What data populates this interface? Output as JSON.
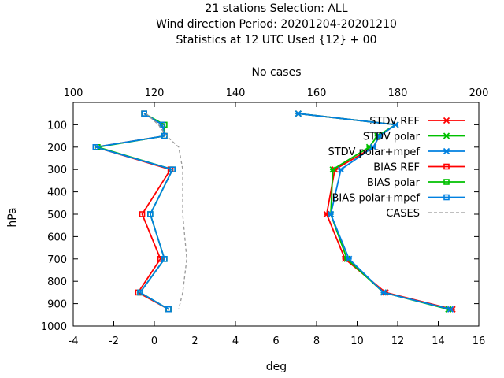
{
  "chart_data": {
    "type": "line",
    "title": [
      "21 stations Selection: ALL",
      "Wind direction  Period: 20201204-20201210",
      "Statistics at 12 UTC  Used {12} + 00"
    ],
    "xlabel": "deg",
    "x2label": "No cases",
    "ylabel": "hPa",
    "xlim": [
      -4,
      16
    ],
    "x2lim": [
      100,
      200
    ],
    "ylim": [
      1000,
      0
    ],
    "xticks": [
      "-4",
      "-2",
      "0",
      "2",
      "4",
      "6",
      "8",
      "10",
      "12",
      "14",
      "16"
    ],
    "x2ticks": [
      "100",
      "120",
      "140",
      "160",
      "180",
      "200"
    ],
    "yticks": [
      "100",
      "200",
      "300",
      "400",
      "500",
      "600",
      "700",
      "800",
      "900",
      "1000"
    ],
    "pressure_levels": [
      50,
      100,
      150,
      200,
      300,
      500,
      700,
      850,
      925
    ],
    "series": [
      {
        "name": "STDV REF",
        "color": "#ff0000",
        "marker": "x",
        "axis": "bottom",
        "values": [
          7.1,
          11.9,
          11.1,
          10.8,
          8.9,
          8.5,
          9.4,
          11.4,
          14.7
        ]
      },
      {
        "name": "STDV polar",
        "color": "#00c000",
        "marker": "x",
        "axis": "bottom",
        "values": [
          7.1,
          11.9,
          11.0,
          10.6,
          8.8,
          8.7,
          9.5,
          11.3,
          14.5
        ]
      },
      {
        "name": "STDV polar+mpef",
        "color": "#0080e0",
        "marker": "x",
        "axis": "bottom",
        "values": [
          7.1,
          11.9,
          11.1,
          10.8,
          9.2,
          8.7,
          9.6,
          11.3,
          14.6
        ]
      },
      {
        "name": "BIAS REF",
        "color": "#ff0000",
        "marker": "square",
        "axis": "bottom",
        "values": [
          -0.5,
          0.4,
          0.5,
          -2.9,
          0.8,
          -0.6,
          0.3,
          -0.8,
          0.7
        ]
      },
      {
        "name": "BIAS polar",
        "color": "#00c000",
        "marker": "square",
        "axis": "bottom",
        "values": [
          -0.5,
          0.5,
          0.5,
          -2.8,
          0.9,
          -0.2,
          0.5,
          -0.7,
          0.7
        ]
      },
      {
        "name": "BIAS polar+mpef",
        "color": "#0080e0",
        "marker": "square",
        "axis": "bottom",
        "values": [
          -0.5,
          0.4,
          0.5,
          -2.9,
          0.9,
          -0.2,
          0.5,
          -0.7,
          0.7
        ]
      },
      {
        "name": "CASES",
        "color": "#999999",
        "marker": "none",
        "dashed": true,
        "axis": "top",
        "levels": [
          50,
          100,
          150,
          200,
          300,
          500,
          700,
          850,
          925
        ],
        "values": [
          118,
          121,
          123,
          126,
          127,
          127,
          128,
          127,
          126
        ]
      }
    ],
    "legend_position": "top-right",
    "grid": false
  }
}
